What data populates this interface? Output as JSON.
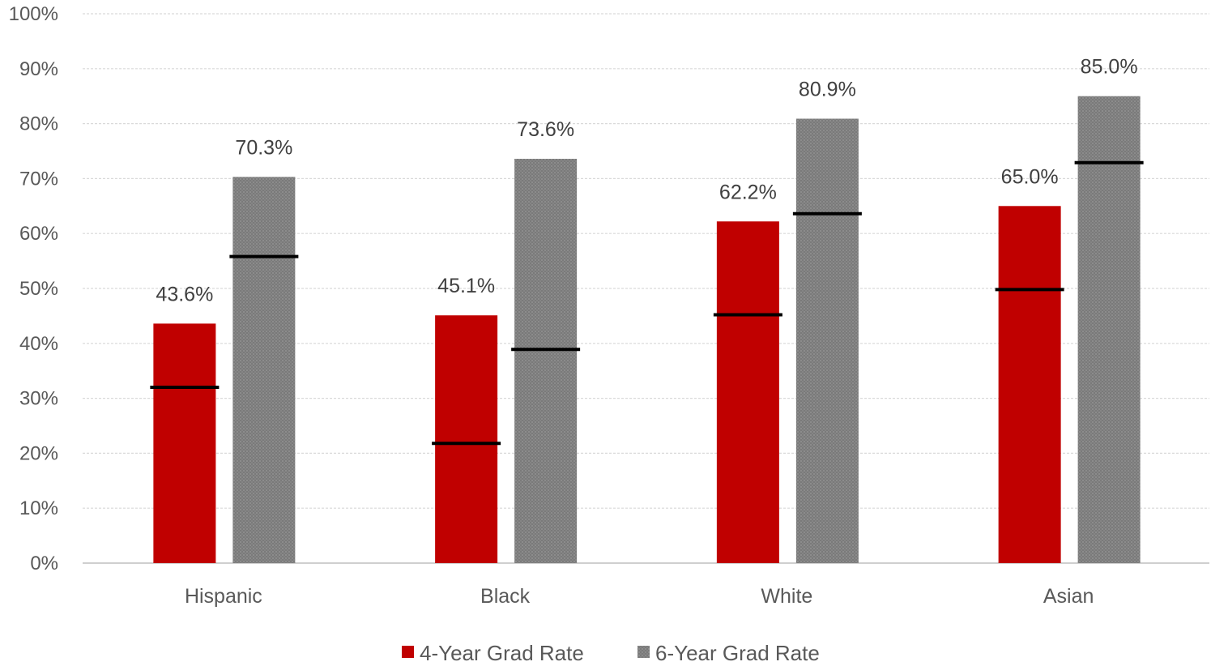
{
  "chart_data": {
    "type": "bar",
    "title": "",
    "xlabel": "",
    "ylabel": "",
    "ylim": [
      0,
      100
    ],
    "y_tick_step": 10,
    "y_tick_format": "percent",
    "grid": true,
    "legend_position": "bottom",
    "categories": [
      "Hispanic",
      "Black",
      "White",
      "Asian"
    ],
    "series": [
      {
        "name": "4-Year Grad Rate",
        "color": "#c00000",
        "values": [
          43.6,
          45.1,
          62.2,
          65.0
        ],
        "data_labels": [
          "43.6%",
          "45.1%",
          "62.2%",
          "65.0%"
        ],
        "marker_values": [
          32.0,
          21.8,
          45.2,
          49.8
        ]
      },
      {
        "name": "6-Year Grad Rate",
        "color": "#7f7f7f",
        "values": [
          70.3,
          73.6,
          80.9,
          85.0
        ],
        "data_labels": [
          "70.3%",
          "73.6%",
          "80.9%",
          "85.0%"
        ],
        "marker_values": [
          55.8,
          38.9,
          63.6,
          72.9
        ]
      }
    ]
  }
}
